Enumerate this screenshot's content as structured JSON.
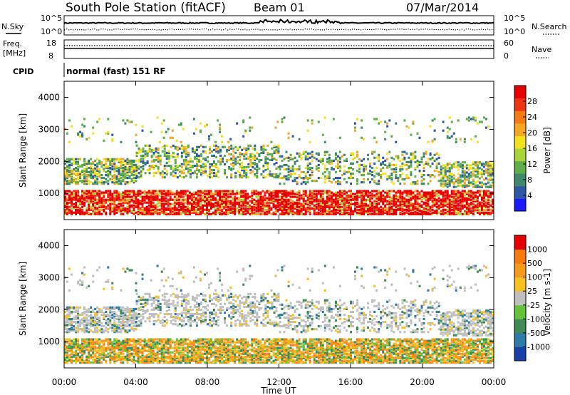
{
  "header": {
    "station": "South Pole Station (fitACF)",
    "beam": "Beam 01",
    "date": "07/Mar/2014"
  },
  "top_panel": {
    "nsky_label": "N.Sky",
    "nsearch_label": "N.Search",
    "left_ticks": [
      "10^5",
      "10^0"
    ],
    "right_ticks": [
      "10^5",
      "10^0"
    ]
  },
  "freq_panel": {
    "freq_label": "Freq.",
    "unit_label": "[MHz]",
    "nave_label": "Nave",
    "left_ticks": [
      "18",
      "8"
    ],
    "right_ticks": [
      "60",
      "0"
    ]
  },
  "cpid_panel": {
    "cpid_label": "CPID",
    "mode_text": "normal (fast) 151 RF"
  },
  "chart_data": [
    {
      "type": "heatmap",
      "title": "",
      "ylabel": "Slant Range [km]",
      "xlabel": "",
      "ylim": [
        180,
        4500
      ],
      "y_ticks": [
        "1000",
        "2000",
        "3000",
        "4000"
      ],
      "colorbar": {
        "label": "Power [dB]",
        "ticks": [
          "4",
          "8",
          "12",
          "16",
          "20",
          "24",
          "28"
        ],
        "colors": [
          "#1a1aff",
          "#2e57a8",
          "#3f8a6b",
          "#5fae4a",
          "#a8d43a",
          "#f2e21e",
          "#f5a623",
          "#f47a15",
          "#ee3512",
          "#e60000"
        ]
      }
    },
    {
      "type": "heatmap",
      "title": "",
      "ylabel": "Slant Range [km]",
      "xlabel": "Time UT",
      "ylim": [
        180,
        4500
      ],
      "y_ticks": [
        "1000",
        "2000",
        "3000",
        "4000"
      ],
      "x_ticks": [
        "00:00",
        "04:00",
        "08:00",
        "12:00",
        "16:00",
        "20:00",
        "00:00"
      ],
      "colorbar": {
        "label": "Velocity [m s-1]",
        "ticks": [
          "1000",
          "500",
          "100",
          "25",
          "-25",
          "-100",
          "-500",
          "-1000"
        ],
        "colors": [
          "#1b3fa8",
          "#2e7aa8",
          "#3f8a55",
          "#66c23a",
          "#bfbfbf",
          "#f5c020",
          "#f59a1c",
          "#f57a10",
          "#e60000"
        ]
      }
    }
  ]
}
